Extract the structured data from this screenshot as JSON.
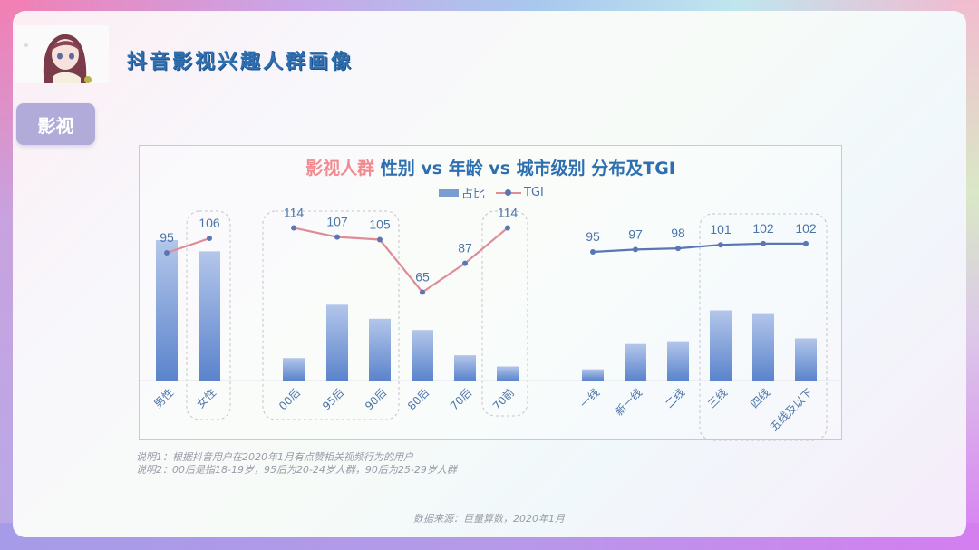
{
  "header": {
    "title": "抖音影视兴趣人群画像",
    "tag": "影视"
  },
  "chart": {
    "title_accent": "影视人群",
    "title_main": " 性别 vs 年龄 vs 城市级别 分布及TGI",
    "legend": {
      "bar": "占比",
      "line": "TGI"
    }
  },
  "colors": {
    "title": "#2e6fb0",
    "title_accent": "#f28a8f",
    "bar_top": "#b3c6ea",
    "bar_bottom": "#5b84cc",
    "line_pink": "#e08c96",
    "line_blue": "#5b76b5",
    "label": "#4b74a8"
  },
  "chart_data": {
    "type": "bar",
    "title": "影视人群 性别 vs 年龄 vs 城市级别 分布及TGI",
    "legend": [
      "占比",
      "TGI"
    ],
    "categories": [
      "男性",
      "女性",
      "00后",
      "95后",
      "90后",
      "80后",
      "70后",
      "70前",
      "一线",
      "新一线",
      "二线",
      "三线",
      "四线",
      "五线及以下"
    ],
    "groups": [
      {
        "name": "性别",
        "categories": [
          "男性",
          "女性"
        ]
      },
      {
        "name": "年龄",
        "categories": [
          "00后",
          "95后",
          "90后",
          "80后",
          "70后",
          "70前"
        ]
      },
      {
        "name": "城市级别",
        "categories": [
          "一线",
          "新一线",
          "二线",
          "三线",
          "四线",
          "五线及以下"
        ]
      }
    ],
    "series": [
      {
        "name": "占比",
        "type": "bar",
        "values": [
          50,
          46,
          8,
          27,
          22,
          18,
          9,
          5,
          4,
          13,
          14,
          25,
          24,
          15
        ]
      },
      {
        "name": "TGI",
        "type": "line",
        "values": [
          95,
          106,
          114,
          107,
          105,
          65,
          87,
          114,
          95,
          97,
          98,
          101,
          102,
          102
        ]
      }
    ],
    "highlighted": [
      "女性",
      "00后",
      "95后",
      "90后",
      "70前",
      "三线",
      "四线",
      "五线及以下"
    ],
    "xlabel": "",
    "ylabel": "",
    "grid": false,
    "legend_position": "top"
  },
  "notes": [
    "说明1：根据抖音用户在2020年1月有点赞相关视频行为的用户",
    "说明2：00后是指18-19岁，95后为20-24岁人群，90后为25-29岁人群"
  ],
  "source": "数据来源：巨量算数，2020年1月"
}
